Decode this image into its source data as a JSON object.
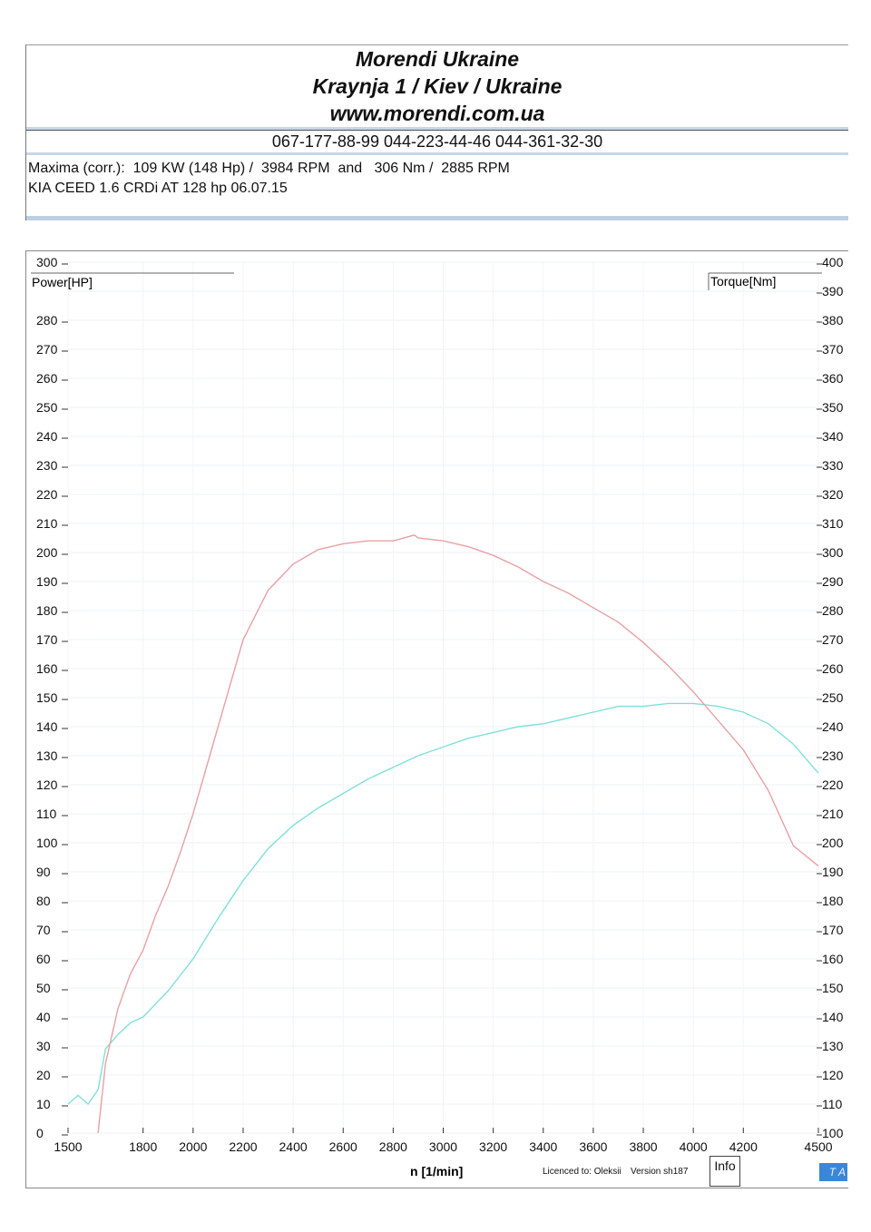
{
  "header": {
    "company": "Morendi Ukraine",
    "address": "Kraynja 1 / Kiev / Ukraine",
    "website": "www.morendi.com.ua",
    "phones": "067-177-88-99 044-223-44-46 044-361-32-30"
  },
  "summary": {
    "line1": "Maxima (corr.):  109 KW (148 Hp) /  3984 RPM  and   306 Nm /  2885 RPM",
    "line2": "KIA CEED 1.6 CRDi AT 128 hp 06.07.15"
  },
  "footer": {
    "licence": "Licenced to: Oleksii",
    "version": "Version sh187",
    "info_button": "Info",
    "ta_badge": "T A"
  },
  "colors": {
    "torque": "#e8a0a4",
    "power": "#7fe0da",
    "accent": "#3a86d8"
  },
  "chart_data": {
    "type": "line",
    "xlabel": "n  [1/min]",
    "ylabel_left": "Power[HP]",
    "ylabel_right": "Torque[Nm]",
    "xlim": [
      1500,
      4500
    ],
    "ylim_left": [
      0,
      300
    ],
    "ylim_right": [
      100,
      400
    ],
    "x_ticks": [
      1500,
      1800,
      2000,
      2200,
      2400,
      2600,
      2800,
      3000,
      3200,
      3400,
      3600,
      3800,
      4000,
      4200,
      4500
    ],
    "y_left_ticks": [
      0,
      10,
      20,
      30,
      40,
      50,
      60,
      70,
      80,
      90,
      100,
      110,
      120,
      130,
      140,
      150,
      160,
      170,
      180,
      190,
      200,
      210,
      220,
      230,
      240,
      250,
      260,
      270,
      280,
      290,
      300
    ],
    "y_right_ticks": [
      100,
      110,
      120,
      130,
      140,
      150,
      160,
      170,
      180,
      190,
      200,
      210,
      220,
      230,
      240,
      250,
      260,
      270,
      280,
      290,
      300,
      310,
      320,
      330,
      340,
      350,
      360,
      370,
      380,
      390,
      400
    ],
    "series": [
      {
        "name": "Power[HP]",
        "axis": "left",
        "x": [
          1500,
          1540,
          1580,
          1620,
          1650,
          1700,
          1750,
          1800,
          1900,
          2000,
          2100,
          2200,
          2300,
          2400,
          2500,
          2600,
          2700,
          2800,
          2900,
          3000,
          3100,
          3200,
          3300,
          3400,
          3500,
          3600,
          3700,
          3800,
          3900,
          4000,
          4100,
          4200,
          4300,
          4400,
          4500
        ],
        "values": [
          10,
          13,
          10,
          15,
          29,
          34,
          38,
          40,
          49,
          60,
          74,
          87,
          98,
          106,
          112,
          117,
          122,
          126,
          130,
          133,
          136,
          138,
          140,
          141,
          143,
          145,
          147,
          147,
          148,
          148,
          147,
          145,
          141,
          134,
          124
        ]
      },
      {
        "name": "Torque[Nm]",
        "axis": "right",
        "x": [
          1620,
          1650,
          1700,
          1750,
          1800,
          1850,
          1900,
          1950,
          2000,
          2050,
          2100,
          2150,
          2200,
          2300,
          2400,
          2500,
          2600,
          2700,
          2800,
          2885,
          2900,
          3000,
          3100,
          3200,
          3300,
          3400,
          3500,
          3600,
          3700,
          3800,
          3900,
          4000,
          4100,
          4200,
          4300,
          4400,
          4500
        ],
        "values": [
          100,
          124,
          143,
          155,
          163,
          175,
          185,
          197,
          210,
          225,
          240,
          255,
          270,
          287,
          296,
          301,
          303,
          304,
          304,
          306,
          305,
          304,
          302,
          299,
          295,
          290,
          286,
          281,
          276,
          269,
          261,
          252,
          242,
          232,
          218,
          199,
          192
        ]
      }
    ]
  }
}
